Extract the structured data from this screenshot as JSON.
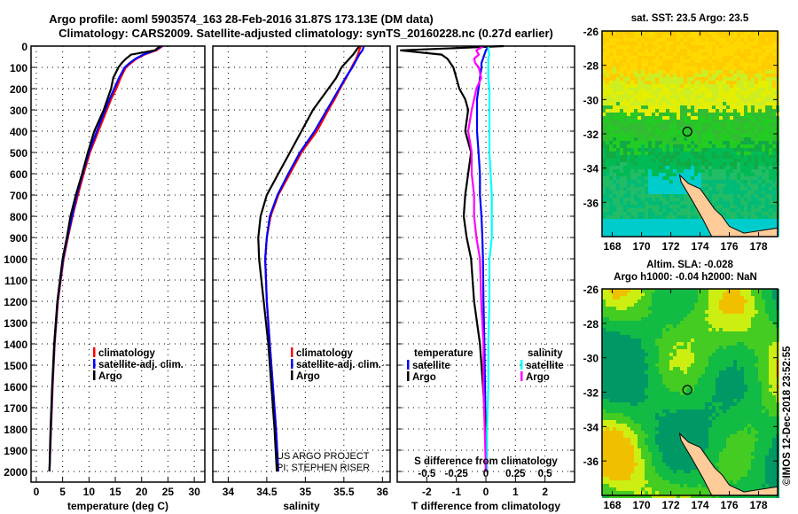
{
  "title_line1": "Argo profile: aoml 5903574_163 28-Feb-2016 31.87S 173.13E (DM data)",
  "title_line2": "Climatology: CARS2009. Satellite-adjusted climatology: synTS_20160228.nc (0.27d earlier)",
  "side_stamp": "©IMOS 12-Dec-2018 23:52:55",
  "colors": {
    "climatology": "#ff0000",
    "satellite": "#0000ff",
    "argo": "#000000",
    "s_satellite": "#00ffff",
    "s_argo": "#ff00ff",
    "land": "#ffcc99"
  },
  "chart_data": [
    {
      "type": "line",
      "name": "temperature",
      "xlabel": "temperature (deg C)",
      "ylabel": "",
      "xlim": [
        -1,
        32
      ],
      "ylim": [
        2050,
        0
      ],
      "xticks": [
        "0",
        "5",
        "10",
        "15",
        "20",
        "25",
        "30"
      ],
      "xtick_values": [
        0,
        5,
        10,
        15,
        20,
        25,
        30
      ],
      "yticks": [
        "0",
        "100",
        "200",
        "300",
        "400",
        "500",
        "600",
        "700",
        "800",
        "900",
        "1000",
        "1100",
        "1200",
        "1300",
        "1400",
        "1500",
        "1600",
        "1700",
        "1800",
        "1900",
        "2000"
      ],
      "depth": [
        0,
        20,
        40,
        60,
        80,
        100,
        150,
        200,
        250,
        300,
        400,
        500,
        600,
        700,
        800,
        900,
        1000,
        1200,
        1400,
        1600,
        1800,
        2000
      ],
      "legend": [
        "climatology",
        "satellite-adj. clim.",
        "Argo"
      ],
      "series": [
        {
          "name": "climatology",
          "color": "#ff0000",
          "values": [
            24,
            22.8,
            20.5,
            19,
            18,
            17,
            16,
            15.2,
            14.2,
            13.4,
            11.8,
            10.2,
            9,
            7.9,
            6.9,
            6,
            5.2,
            4.1,
            3.5,
            3.1,
            2.8,
            2.5
          ]
        },
        {
          "name": "satellite-adj. clim.",
          "color": "#0000ff",
          "values": [
            23.8,
            22.6,
            20.3,
            18.8,
            17.7,
            16.8,
            15.7,
            14.8,
            13.9,
            13.1,
            11.5,
            10,
            8.8,
            7.7,
            6.8,
            5.9,
            5.1,
            4.05,
            3.45,
            3.05,
            2.75,
            2.5
          ]
        },
        {
          "name": "Argo",
          "color": "#000000",
          "values": [
            23.5,
            22.5,
            18,
            17,
            16.2,
            15.6,
            14.6,
            14.2,
            13.5,
            12.8,
            11,
            9.8,
            8.7,
            7.5,
            6.5,
            5.8,
            5,
            4,
            3.4,
            3,
            2.7,
            2.5
          ]
        }
      ]
    },
    {
      "type": "line",
      "name": "salinity",
      "xlabel": "salinity",
      "xlim": [
        33.8,
        36.1
      ],
      "ylim": [
        2050,
        0
      ],
      "xticks": [
        "34",
        "34.5",
        "35",
        "35.5",
        "36"
      ],
      "xtick_values": [
        34,
        34.5,
        35,
        35.5,
        36
      ],
      "depth": [
        0,
        20,
        40,
        60,
        80,
        100,
        150,
        200,
        250,
        300,
        400,
        500,
        600,
        700,
        800,
        900,
        1000,
        1200,
        1400,
        1600,
        1800,
        2000
      ],
      "legend": [
        "climatology",
        "satellite-adj. clim.",
        "Argo"
      ],
      "annotation": [
        "US ARGO PROJECT",
        "PI: STEPHEN RISER"
      ],
      "series": [
        {
          "name": "climatology",
          "color": "#ff0000",
          "values": [
            35.72,
            35.7,
            35.68,
            35.66,
            35.63,
            35.6,
            35.53,
            35.45,
            35.38,
            35.3,
            35.15,
            34.95,
            34.8,
            34.65,
            34.55,
            34.5,
            34.48,
            34.5,
            34.54,
            34.58,
            34.62,
            34.65
          ]
        },
        {
          "name": "satellite-adj. clim.",
          "color": "#0000ff",
          "values": [
            35.76,
            35.74,
            35.7,
            35.67,
            35.64,
            35.61,
            35.52,
            35.44,
            35.36,
            35.28,
            35.12,
            34.93,
            34.78,
            34.64,
            34.54,
            34.5,
            34.48,
            34.5,
            34.54,
            34.58,
            34.62,
            34.65
          ]
        },
        {
          "name": "Argo",
          "color": "#000000",
          "values": [
            35.7,
            35.66,
            35.62,
            35.57,
            35.52,
            35.47,
            35.4,
            35.3,
            35.2,
            35.1,
            34.95,
            34.8,
            34.65,
            34.5,
            34.42,
            34.39,
            34.4,
            34.46,
            34.52,
            34.56,
            34.6,
            34.63
          ]
        }
      ]
    },
    {
      "type": "line",
      "name": "difference",
      "xlabel": "T difference from climatology",
      "x2label": "S difference from climatology",
      "xlim": [
        -3,
        3
      ],
      "x2lim": [
        -0.75,
        0.75
      ],
      "ylim": [
        2050,
        0
      ],
      "xticks": [
        "-2",
        "-1",
        "0",
        "1",
        "2"
      ],
      "xtick_values": [
        -2,
        -1,
        0,
        1,
        2
      ],
      "x2ticks": [
        "-0.5",
        "-0.25",
        "0",
        "0.25",
        "0.5"
      ],
      "x2tick_values": [
        -0.5,
        -0.25,
        0,
        0.25,
        0.5
      ],
      "depth": [
        0,
        20,
        40,
        60,
        80,
        100,
        150,
        200,
        250,
        300,
        400,
        500,
        600,
        700,
        800,
        900,
        1000,
        1200,
        1400,
        1600,
        1800,
        2000
      ],
      "legend_t": {
        "title": "temperature",
        "items": [
          "satellite",
          "Argo"
        ]
      },
      "legend_s": {
        "title": "salinity",
        "items": [
          "satellite",
          "Argo"
        ]
      },
      "series": [
        {
          "name": "T satellite",
          "axis": "T",
          "color": "#0000ff",
          "values": [
            0.1,
            0,
            -0.05,
            -0.1,
            -0.15,
            -0.15,
            -0.2,
            -0.25,
            -0.3,
            -0.3,
            -0.3,
            -0.25,
            -0.2,
            -0.2,
            -0.15,
            -0.12,
            -0.1,
            -0.08,
            -0.05,
            -0.03,
            -0.01,
            0
          ]
        },
        {
          "name": "T Argo",
          "axis": "T",
          "color": "#000000",
          "values": [
            0.6,
            -2.9,
            -1.5,
            -1.3,
            -1.2,
            -1.1,
            -1,
            -0.9,
            -0.7,
            -0.6,
            -0.7,
            -0.5,
            -0.6,
            -0.7,
            -0.75,
            -0.65,
            -0.5,
            -0.4,
            -0.2,
            -0.1,
            0,
            0
          ]
        },
        {
          "name": "S satellite",
          "axis": "S",
          "color": "#00ffff",
          "values": [
            0.02,
            0.02,
            0.03,
            0.02,
            0.02,
            0.02,
            0.02,
            0.03,
            0.03,
            0.03,
            0.03,
            0.03,
            0.04,
            0.05,
            0.05,
            0.05,
            0.03,
            0.03,
            0.02,
            0.02,
            0.01,
            0.01
          ]
        },
        {
          "name": "S Argo",
          "axis": "S",
          "color": "#ff00ff",
          "values": [
            -0.02,
            -0.08,
            -0.06,
            -0.1,
            -0.09,
            -0.06,
            -0.04,
            -0.08,
            -0.1,
            -0.12,
            -0.15,
            -0.12,
            -0.12,
            -0.1,
            -0.1,
            -0.08,
            -0.05,
            -0.04,
            -0.02,
            -0.02,
            -0.01,
            0
          ]
        }
      ]
    }
  ],
  "maps": [
    {
      "title": [
        "sat. SST: 23.5 Argo: 23.5"
      ],
      "lon_ticks": [
        "168",
        "170",
        "172",
        "174",
        "176",
        "178"
      ],
      "lat_ticks": [
        "-26",
        "-28",
        "-30",
        "-32",
        "-34",
        "-36"
      ],
      "argo_lon": 173.13,
      "argo_lat": -31.87
    },
    {
      "title": [
        "Altim. SLA: -0.028",
        "Argo h1000: -0.04 h2000: NaN"
      ],
      "lon_ticks": [
        "168",
        "170",
        "172",
        "174",
        "176",
        "178"
      ],
      "lat_ticks": [
        "-26",
        "-28",
        "-30",
        "-32",
        "-34",
        "-36"
      ],
      "argo_lon": 173.13,
      "argo_lat": -31.87
    }
  ]
}
